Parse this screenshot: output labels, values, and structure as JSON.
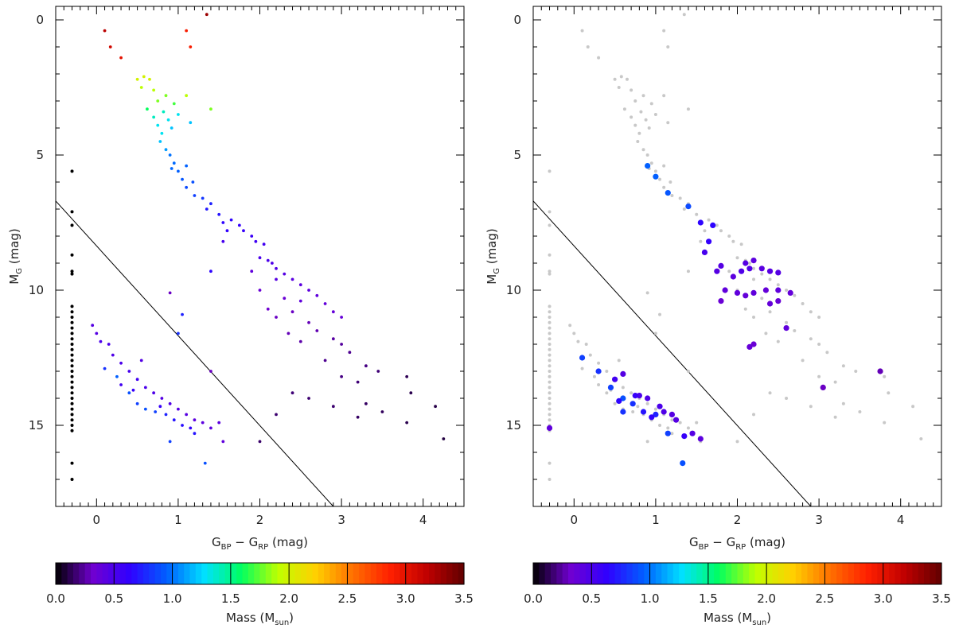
{
  "colors": {
    "reference_line": "#000000",
    "non_member_points": "#c8c8c8",
    "colorbar_stops": [
      "#000000",
      "#7000d0",
      "#3000ff",
      "#0060ff",
      "#00e0ff",
      "#00ff60",
      "#c0ff00",
      "#ffd000",
      "#ff7000",
      "#ff2000",
      "#c00000",
      "#600000"
    ]
  },
  "chart_data": [
    {
      "type": "scatter",
      "panel": "left",
      "xlabel": {
        "main": "G",
        "sub1": "BP",
        "mid": " − G",
        "sub2": "RP",
        "unit": " (mag)"
      },
      "ylabel": {
        "main": "M",
        "sub": "G",
        "unit": " (mag)"
      },
      "xlim": [
        -0.5,
        4.5
      ],
      "ylim": [
        18,
        -0.5
      ],
      "x_ticks": [
        "0",
        "1",
        "2",
        "3",
        "4"
      ],
      "y_ticks": [
        "0",
        "5",
        "10",
        "15"
      ],
      "reference_line": {
        "x": [
          -0.5,
          2.9
        ],
        "y": [
          6.7,
          18.0
        ]
      },
      "points_note": "bright points colored by mass",
      "points": [
        [
          0.1,
          0.4,
          3.2
        ],
        [
          0.17,
          1.0,
          3.1
        ],
        [
          0.3,
          1.4,
          3.0
        ],
        [
          1.1,
          0.4,
          2.9
        ],
        [
          1.15,
          1.0,
          2.9
        ],
        [
          1.35,
          -0.2,
          3.3
        ],
        [
          0.5,
          2.2,
          2.0
        ],
        [
          0.58,
          2.1,
          2.0
        ],
        [
          0.65,
          2.2,
          2.0
        ],
        [
          0.55,
          2.5,
          1.9
        ],
        [
          0.7,
          2.6,
          1.9
        ],
        [
          0.75,
          3.0,
          1.8
        ],
        [
          0.85,
          2.8,
          1.8
        ],
        [
          0.95,
          3.1,
          1.7
        ],
        [
          1.1,
          2.8,
          1.9
        ],
        [
          1.4,
          3.3,
          1.8
        ],
        [
          0.62,
          3.3,
          1.6
        ],
        [
          0.7,
          3.6,
          1.4
        ],
        [
          0.75,
          3.9,
          1.3
        ],
        [
          0.8,
          4.2,
          1.3
        ],
        [
          0.78,
          4.5,
          1.2
        ],
        [
          0.85,
          4.8,
          1.1
        ],
        [
          0.82,
          3.4,
          1.4
        ],
        [
          0.88,
          3.7,
          1.3
        ],
        [
          0.92,
          4.0,
          1.2
        ],
        [
          1.0,
          3.5,
          1.3
        ],
        [
          1.15,
          3.8,
          1.2
        ],
        [
          0.9,
          5.0,
          1.0
        ],
        [
          0.95,
          5.3,
          0.98
        ],
        [
          1.0,
          5.6,
          0.95
        ],
        [
          1.05,
          5.9,
          0.92
        ],
        [
          1.1,
          6.2,
          0.88
        ],
        [
          1.18,
          6.0,
          0.9
        ],
        [
          0.92,
          5.5,
          0.97
        ],
        [
          1.2,
          6.5,
          0.85
        ],
        [
          1.3,
          6.6,
          0.82
        ],
        [
          1.1,
          5.4,
          0.96
        ],
        [
          1.4,
          6.8,
          0.75
        ],
        [
          1.5,
          7.2,
          0.7
        ],
        [
          1.55,
          7.5,
          0.65
        ],
        [
          1.65,
          7.4,
          0.65
        ],
        [
          1.75,
          7.6,
          0.62
        ],
        [
          1.8,
          7.8,
          0.6
        ],
        [
          1.9,
          8.0,
          0.58
        ],
        [
          1.95,
          8.2,
          0.56
        ],
        [
          2.05,
          8.3,
          0.55
        ],
        [
          1.35,
          7.0,
          0.72
        ],
        [
          1.6,
          7.8,
          0.63
        ],
        [
          1.55,
          8.2,
          0.52
        ],
        [
          2.0,
          8.8,
          0.5
        ],
        [
          2.1,
          8.9,
          0.5
        ],
        [
          2.15,
          9.0,
          0.48
        ],
        [
          2.2,
          9.2,
          0.47
        ],
        [
          2.3,
          9.4,
          0.45
        ],
        [
          2.4,
          9.6,
          0.43
        ],
        [
          2.5,
          9.8,
          0.42
        ],
        [
          2.6,
          10.0,
          0.41
        ],
        [
          2.7,
          10.2,
          0.4
        ],
        [
          2.8,
          10.5,
          0.39
        ],
        [
          2.9,
          10.8,
          0.38
        ],
        [
          3.0,
          11.0,
          0.37
        ],
        [
          2.2,
          9.6,
          0.44
        ],
        [
          2.5,
          10.4,
          0.4
        ],
        [
          1.9,
          9.3,
          0.4
        ],
        [
          2.0,
          10.0,
          0.35
        ],
        [
          2.3,
          10.3,
          0.35
        ],
        [
          2.4,
          10.8,
          0.3
        ],
        [
          2.6,
          11.2,
          0.28
        ],
        [
          2.7,
          11.5,
          0.27
        ],
        [
          2.9,
          11.8,
          0.25
        ],
        [
          3.0,
          12.0,
          0.24
        ],
        [
          3.1,
          12.3,
          0.22
        ],
        [
          3.3,
          12.8,
          0.2
        ],
        [
          3.45,
          13.0,
          0.18
        ],
        [
          2.2,
          11.0,
          0.3
        ],
        [
          2.5,
          11.9,
          0.26
        ],
        [
          2.8,
          12.6,
          0.22
        ],
        [
          3.2,
          13.4,
          0.18
        ],
        [
          3.0,
          13.2,
          0.2
        ],
        [
          2.1,
          10.7,
          0.32
        ],
        [
          2.35,
          11.6,
          0.28
        ],
        [
          3.3,
          14.2,
          0.15
        ],
        [
          3.5,
          14.5,
          0.14
        ],
        [
          3.8,
          13.2,
          0.13
        ],
        [
          4.15,
          14.3,
          0.11
        ],
        [
          4.25,
          15.5,
          0.1
        ],
        [
          3.8,
          14.9,
          0.12
        ],
        [
          2.9,
          14.3,
          0.17
        ],
        [
          2.6,
          14.0,
          0.17
        ],
        [
          2.4,
          13.8,
          0.18
        ],
        [
          2.2,
          14.6,
          0.17
        ],
        [
          2.0,
          15.6,
          0.16
        ],
        [
          3.2,
          14.7,
          0.15
        ],
        [
          3.85,
          13.8,
          0.12
        ],
        [
          0.9,
          10.1,
          0.3
        ],
        [
          1.4,
          9.3,
          0.65
        ],
        [
          1.4,
          13.0,
          0.3
        ],
        [
          1.05,
          10.9,
          0.75
        ],
        [
          1.0,
          11.6,
          0.8
        ],
        [
          -0.05,
          11.3,
          0.45
        ],
        [
          0.0,
          11.6,
          0.45
        ],
        [
          0.05,
          11.9,
          0.5
        ],
        [
          0.15,
          12.0,
          0.5
        ],
        [
          0.2,
          12.4,
          0.48
        ],
        [
          0.3,
          12.7,
          0.5
        ],
        [
          0.4,
          13.0,
          0.52
        ],
        [
          0.5,
          13.3,
          0.55
        ],
        [
          0.55,
          12.6,
          0.46
        ],
        [
          0.6,
          13.6,
          0.5
        ],
        [
          0.7,
          13.8,
          0.48
        ],
        [
          0.8,
          14.0,
          0.45
        ],
        [
          0.9,
          14.2,
          0.47
        ],
        [
          1.0,
          14.4,
          0.45
        ],
        [
          1.1,
          14.6,
          0.44
        ],
        [
          1.2,
          14.8,
          0.42
        ],
        [
          1.3,
          14.9,
          0.42
        ],
        [
          1.4,
          15.1,
          0.42
        ],
        [
          1.55,
          15.6,
          0.4
        ],
        [
          1.5,
          14.9,
          0.42
        ],
        [
          0.1,
          12.9,
          0.8
        ],
        [
          0.25,
          13.2,
          0.95
        ],
        [
          0.4,
          13.8,
          0.9
        ],
        [
          0.5,
          14.2,
          0.85
        ],
        [
          0.6,
          14.4,
          0.9
        ],
        [
          0.72,
          14.5,
          0.85
        ],
        [
          0.85,
          14.6,
          0.75
        ],
        [
          0.95,
          14.8,
          0.7
        ],
        [
          1.05,
          15.0,
          0.68
        ],
        [
          1.2,
          15.3,
          0.7
        ],
        [
          1.33,
          16.4,
          0.9
        ],
        [
          0.9,
          15.6,
          0.85
        ],
        [
          0.3,
          13.5,
          0.55
        ],
        [
          0.45,
          13.7,
          0.6
        ],
        [
          0.78,
          14.3,
          0.6
        ],
        [
          1.15,
          15.1,
          0.62
        ]
      ],
      "gray_points_note": "points without mass estimate",
      "gray_points": [],
      "black_points_note": "points at x=-0.3 plotted in black (mass 0)",
      "black_points": [
        [
          -0.3,
          5.6
        ],
        [
          -0.3,
          7.1
        ],
        [
          -0.3,
          7.6
        ],
        [
          -0.3,
          8.7
        ],
        [
          -0.3,
          9.3
        ],
        [
          -0.3,
          9.4
        ],
        [
          -0.3,
          10.6
        ],
        [
          -0.3,
          10.8
        ],
        [
          -0.3,
          11.0
        ],
        [
          -0.3,
          11.2
        ],
        [
          -0.3,
          11.4
        ],
        [
          -0.3,
          11.6
        ],
        [
          -0.3,
          11.8
        ],
        [
          -0.3,
          12.0
        ],
        [
          -0.3,
          12.2
        ],
        [
          -0.3,
          12.4
        ],
        [
          -0.3,
          12.6
        ],
        [
          -0.3,
          12.8
        ],
        [
          -0.3,
          13.0
        ],
        [
          -0.3,
          13.2
        ],
        [
          -0.3,
          13.4
        ],
        [
          -0.3,
          13.6
        ],
        [
          -0.3,
          13.8
        ],
        [
          -0.3,
          14.0
        ],
        [
          -0.3,
          14.2
        ],
        [
          -0.3,
          14.4
        ],
        [
          -0.3,
          14.6
        ],
        [
          -0.3,
          14.8
        ],
        [
          -0.3,
          15.0
        ],
        [
          -0.3,
          15.2
        ],
        [
          -0.3,
          16.4
        ],
        [
          -0.3,
          17.0
        ]
      ]
    },
    {
      "type": "scatter",
      "panel": "right",
      "xlabel": {
        "main": "G",
        "sub1": "BP",
        "mid": " − G",
        "sub2": "RP",
        "unit": " (mag)"
      },
      "ylabel": {
        "main": "M",
        "sub": "G",
        "unit": " (mag)"
      },
      "xlim": [
        -0.5,
        4.5
      ],
      "ylim": [
        18,
        -0.5
      ],
      "x_ticks": [
        "0",
        "1",
        "2",
        "3",
        "4"
      ],
      "y_ticks": [
        "0",
        "5",
        "10",
        "15"
      ],
      "reference_line": {
        "x": [
          -0.5,
          2.9
        ],
        "y": [
          6.7,
          18.0
        ]
      },
      "points_note": "highlighted subset colored by mass, drawn larger",
      "points": [
        [
          0.9,
          5.4,
          0.95
        ],
        [
          1.0,
          5.8,
          0.95
        ],
        [
          1.15,
          6.4,
          0.92
        ],
        [
          1.4,
          6.9,
          0.88
        ],
        [
          1.55,
          7.5,
          0.65
        ],
        [
          1.7,
          7.6,
          0.65
        ],
        [
          1.65,
          8.2,
          0.62
        ],
        [
          1.6,
          8.6,
          0.52
        ],
        [
          1.8,
          9.1,
          0.45
        ],
        [
          1.75,
          9.3,
          0.45
        ],
        [
          1.95,
          9.5,
          0.42
        ],
        [
          2.1,
          9.0,
          0.45
        ],
        [
          2.2,
          8.9,
          0.42
        ],
        [
          2.3,
          9.2,
          0.43
        ],
        [
          2.4,
          9.3,
          0.44
        ],
        [
          2.5,
          9.35,
          0.45
        ],
        [
          2.05,
          9.3,
          0.48
        ],
        [
          2.15,
          9.2,
          0.47
        ],
        [
          1.85,
          10.0,
          0.4
        ],
        [
          2.0,
          10.1,
          0.4
        ],
        [
          2.1,
          10.2,
          0.38
        ],
        [
          2.2,
          10.1,
          0.4
        ],
        [
          2.35,
          10.0,
          0.38
        ],
        [
          2.5,
          10.0,
          0.4
        ],
        [
          2.65,
          10.1,
          0.38
        ],
        [
          2.4,
          10.5,
          0.38
        ],
        [
          2.5,
          10.4,
          0.36
        ],
        [
          2.6,
          11.4,
          0.4
        ],
        [
          2.2,
          12.0,
          0.35
        ],
        [
          2.15,
          12.1,
          0.37
        ],
        [
          3.05,
          13.6,
          0.3
        ],
        [
          3.75,
          13.0,
          0.28
        ],
        [
          1.8,
          10.4,
          0.35
        ],
        [
          -0.3,
          15.1,
          0.4
        ],
        [
          0.1,
          12.5,
          0.85
        ],
        [
          0.3,
          13.0,
          0.8
        ],
        [
          0.45,
          13.6,
          0.85
        ],
        [
          0.6,
          14.0,
          0.9
        ],
        [
          0.72,
          14.2,
          0.8
        ],
        [
          0.85,
          14.5,
          0.7
        ],
        [
          1.0,
          14.6,
          0.75
        ],
        [
          1.15,
          15.3,
          0.85
        ],
        [
          1.33,
          16.4,
          0.9
        ],
        [
          0.6,
          14.5,
          0.8
        ],
        [
          0.6,
          13.1,
          0.45
        ],
        [
          0.5,
          13.3,
          0.55
        ],
        [
          0.8,
          13.9,
          0.5
        ],
        [
          0.9,
          14.0,
          0.48
        ],
        [
          1.05,
          14.3,
          0.5
        ],
        [
          1.1,
          14.5,
          0.48
        ],
        [
          1.2,
          14.6,
          0.45
        ],
        [
          1.25,
          14.8,
          0.45
        ],
        [
          1.35,
          15.4,
          0.6
        ],
        [
          1.45,
          15.3,
          0.45
        ],
        [
          1.55,
          15.5,
          0.42
        ],
        [
          0.75,
          13.9,
          0.6
        ],
        [
          0.55,
          14.1,
          0.65
        ],
        [
          0.95,
          14.7,
          0.63
        ]
      ],
      "gray_points_note": "full sample drawn in light gray behind highlighted stars",
      "gray_points": "same as left panel points and black points",
      "black_points": []
    }
  ],
  "colorbars": [
    {
      "label": {
        "main": "Mass (M",
        "sub": "sun",
        "close": ")"
      },
      "range": [
        0.0,
        3.5
      ],
      "tick_labels": [
        "0.0",
        "0.5",
        "1.0",
        "1.5",
        "2.0",
        "2.5",
        "3.0",
        "3.5"
      ]
    },
    {
      "label": {
        "main": "Mass (M",
        "sub": "sun",
        "close": ")"
      },
      "range": [
        0.0,
        3.5
      ],
      "tick_labels": [
        "0.0",
        "0.5",
        "1.0",
        "1.5",
        "2.0",
        "2.5",
        "3.0",
        "3.5"
      ]
    }
  ]
}
